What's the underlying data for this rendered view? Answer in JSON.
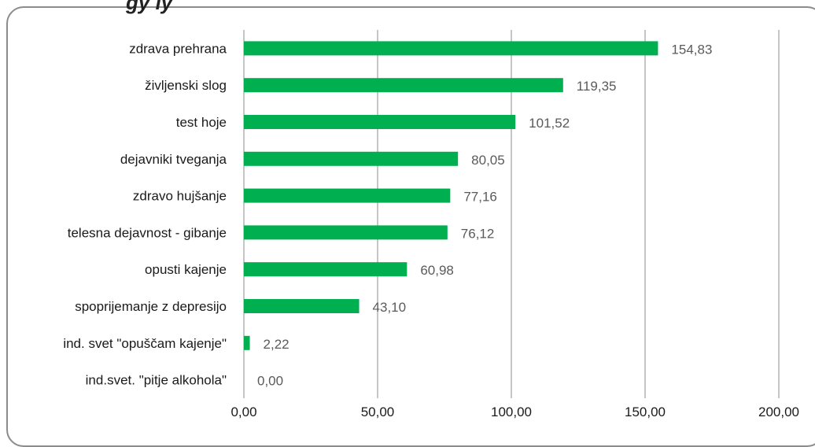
{
  "chart_data": {
    "type": "bar",
    "orientation": "horizontal",
    "categories": [
      "zdrava prehrana",
      "življenski slog",
      "test hoje",
      "dejavniki tveganja",
      "zdravo hujšanje",
      "telesna dejavnost - gibanje",
      "opusti kajenje",
      "spoprijemanje z depresijo",
      "ind. svet \"opuščam kajenje\"",
      "ind.svet. \"pitje alkohola\""
    ],
    "values": [
      154.83,
      119.35,
      101.52,
      80.05,
      77.16,
      76.12,
      60.98,
      43.1,
      2.22,
      0.0
    ],
    "value_labels": [
      "154,83",
      "119,35",
      "101,52",
      "80,05",
      "77,16",
      "76,12",
      "60,98",
      "43,10",
      "2,22",
      "0,00"
    ],
    "xlim": [
      0,
      200
    ],
    "x_ticks": [
      0,
      50,
      100,
      150,
      200
    ],
    "x_tick_labels": [
      "0,00",
      "50,00",
      "100,00",
      "150,00",
      "200,00"
    ],
    "bar_color": "#00b050",
    "grid": "vertical"
  }
}
